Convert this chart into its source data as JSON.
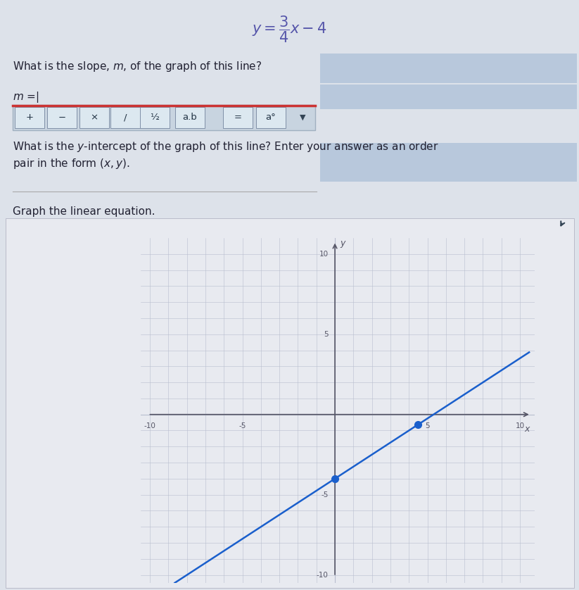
{
  "page_bg": "#dde2ea",
  "top_bg": "#dde2ea",
  "graph_panel_bg": "#e8eaf0",
  "graph_bg": "#d8dce8",
  "grid_color": "#b8bece",
  "axis_color": "#555566",
  "line_color": "#1a5fcc",
  "dot_color": "#1a5fcc",
  "answer_box_color": "#b8c8dc",
  "toolbar_bg": "#c8d4e0",
  "toolbar_border": "#a0b0c0",
  "toolbar_red": "#cc3333",
  "btn_bg": "#dce8f0",
  "btn_border": "#8090a8",
  "slope": 0.75,
  "intercept": -4,
  "xlim": [
    -10,
    10
  ],
  "ylim": [
    -10,
    10
  ],
  "dot_points": [
    [
      0,
      -4
    ],
    [
      4.5,
      -0.625
    ]
  ],
  "equation_color": "#5555aa",
  "text_color": "#222233",
  "tick_color": "#555566"
}
